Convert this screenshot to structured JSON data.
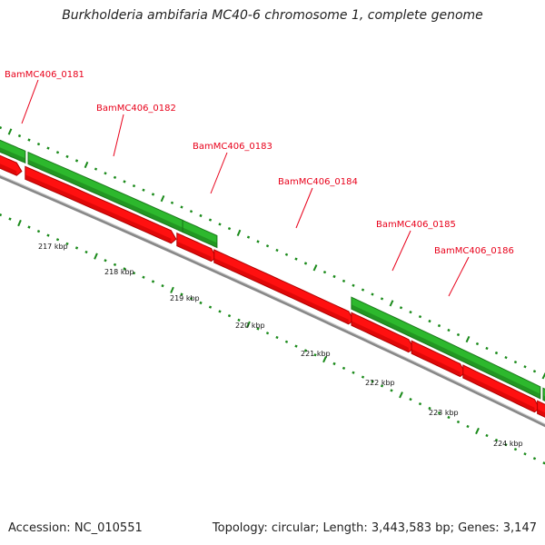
{
  "title": "Burkholderia ambifaria MC40-6 chromosome 1, complete genome",
  "footer": {
    "accession": "Accession: NC_010551",
    "summary": "Topology: circular; Length: 3,443,583 bp; Genes: 3,147"
  },
  "colors": {
    "forward_gene": "#2db82d",
    "forward_gene_dark": "#1a7a1a",
    "reverse_gene": "#ff1010",
    "label": "#e8001a",
    "backbone": "#888888",
    "ticks": "#1a8a1a"
  },
  "gene_labels": [
    "BamMC406_0181",
    "BamMC406_0182",
    "BamMC406_0183",
    "BamMC406_0184",
    "BamMC406_0185",
    "BamMC406_0186"
  ],
  "kbp_labels": [
    "217 kbp",
    "218 kbp",
    "219 kbp",
    "220 kbp",
    "221 kbp",
    "222 kbp",
    "223 kbp",
    "224 kbp"
  ]
}
